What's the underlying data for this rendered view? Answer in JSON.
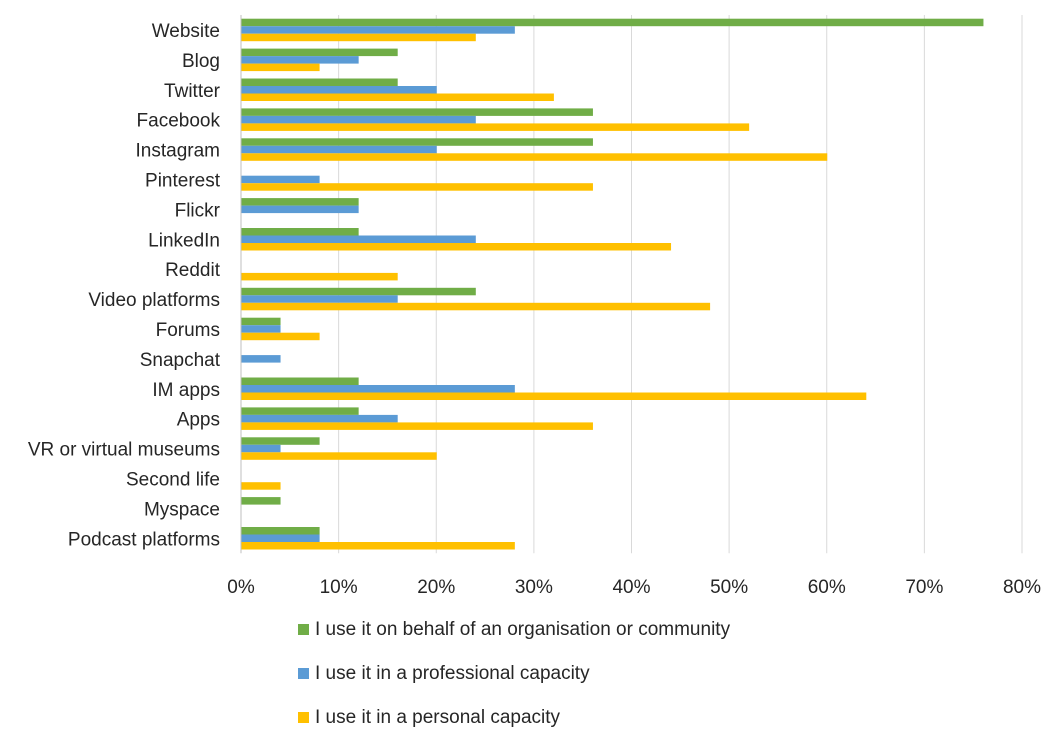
{
  "chart_data": {
    "type": "bar",
    "orientation": "horizontal",
    "categories": [
      "Website",
      "Blog",
      "Twitter",
      "Facebook",
      "Instagram",
      "Pinterest",
      "Flickr",
      "LinkedIn",
      "Reddit",
      "Video platforms",
      "Forums",
      "Snapchat",
      "IM apps",
      "Apps",
      "VR or virtual museums",
      "Second life",
      "Myspace",
      "Podcast platforms"
    ],
    "series": [
      {
        "name": "I use it on behalf of an organisation or community",
        "color": "#70AD47",
        "values": [
          0.76,
          0.16,
          0.16,
          0.36,
          0.36,
          0,
          0.12,
          0.12,
          0,
          0.24,
          0.04,
          0,
          0.12,
          0.12,
          0.08,
          0,
          0.04,
          0.08
        ]
      },
      {
        "name": "I use it in a professional capacity",
        "color": "#5B9BD5",
        "values": [
          0.28,
          0.12,
          0.2,
          0.24,
          0.2,
          0.08,
          0.12,
          0.24,
          0,
          0.16,
          0.04,
          0.04,
          0.28,
          0.16,
          0.04,
          0,
          0,
          0.08
        ]
      },
      {
        "name": "I use it in a personal capacity",
        "color": "#FFC000",
        "values": [
          0.24,
          0.08,
          0.32,
          0.52,
          0.6,
          0.36,
          0,
          0.44,
          0.16,
          0.48,
          0.08,
          0,
          0.64,
          0.36,
          0.2,
          0.04,
          0,
          0.28
        ]
      }
    ],
    "xlim": [
      0,
      0.8
    ],
    "x_ticks": [
      "0%",
      "10%",
      "20%",
      "30%",
      "40%",
      "50%",
      "60%",
      "70%",
      "80%"
    ],
    "grid": "vertical",
    "legend_position": "bottom",
    "title": "",
    "xlabel": "",
    "ylabel": ""
  }
}
